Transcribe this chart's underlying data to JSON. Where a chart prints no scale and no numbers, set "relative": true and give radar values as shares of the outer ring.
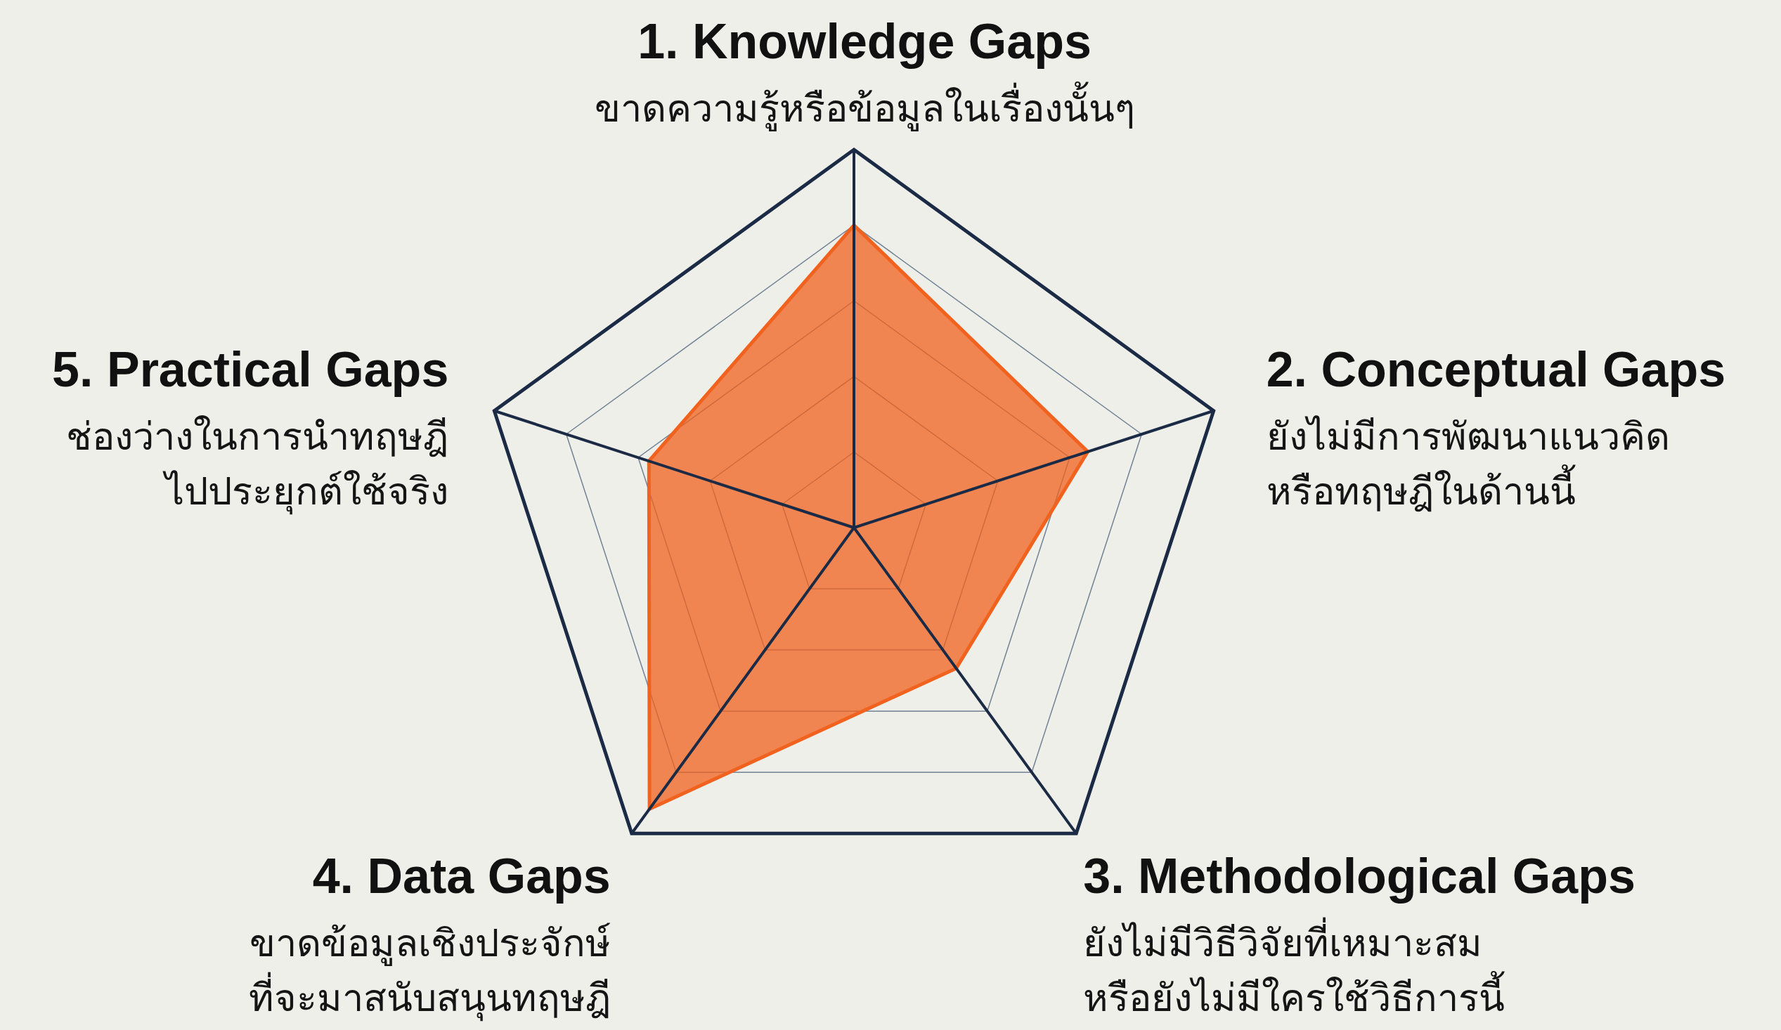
{
  "chart_data": {
    "type": "radar",
    "relative": true,
    "grid": true,
    "categories": [
      "1. Knowledge Gaps",
      "2. Conceptual Gaps",
      "3. Methodological Gaps",
      "4. Data Gaps",
      "5. Practical Gaps"
    ],
    "annotations": [
      "ขาดความรู้หรือข้อมูลในเรื่องนั้นๆ",
      "ยังไม่มีการพัฒนาแนวคิด\nหรือทฤษฎีในด้านนี้",
      "ยังไม่มีวิธีวิจัยที่เหมาะสม\nหรือยังไม่มีใครใช้วิธีการนี้",
      "ขาดข้อมูลเชิงประจักษ์\nที่จะมาสนับสนุนทฤษฎี",
      "ช่องว่างในการนำทฤษฎี\nไปประยุกต์ใช้จริง"
    ],
    "series": [
      {
        "color": "#f0621e",
        "values": [
          0.8,
          0.65,
          0.46,
          0.92,
          0.57
        ]
      }
    ]
  }
}
